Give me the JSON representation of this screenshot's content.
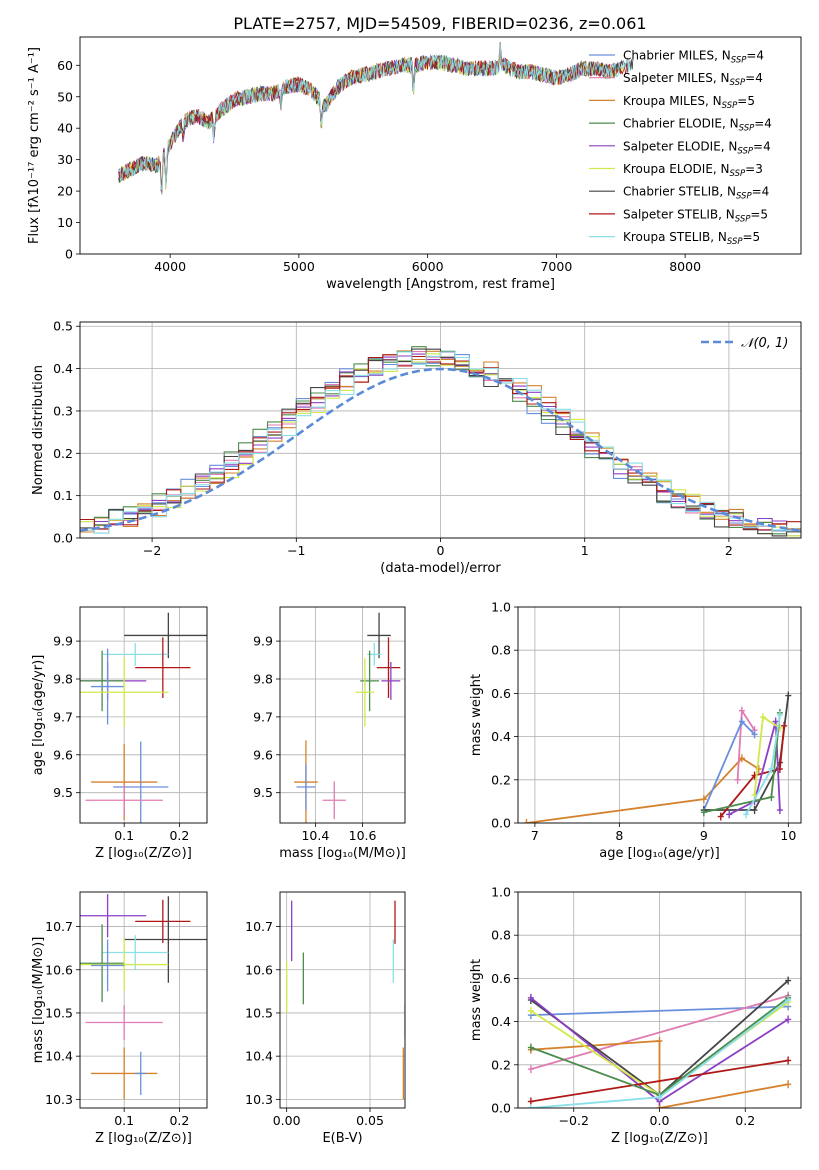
{
  "figure_title": "PLATE=2757, MJD=54509, FIBERID=0236, z=0.061",
  "chart_data": [
    {
      "id": "spectrum",
      "type": "line",
      "xlabel": "wavelength [Angstrom, rest frame]",
      "ylabel": "Flux [fλ10⁻¹⁷ erg cm⁻² s⁻¹ A⁻¹]",
      "xlim": [
        3300,
        8900
      ],
      "ylim": [
        0,
        69
      ],
      "xticks": [
        4000,
        5000,
        6000,
        7000,
        8000
      ],
      "yticks": [
        0,
        10,
        20,
        30,
        40,
        50,
        60
      ],
      "grid": false,
      "legend_position": "top-right",
      "series": [
        {
          "name": "Chabrier MILES, N_SSP=4",
          "color": "#6a8fdc"
        },
        {
          "name": "Salpeter MILES, N_SSP=4",
          "color": "#e07bb3"
        },
        {
          "name": "Kroupa MILES, N_SSP=5",
          "color": "#d4822d"
        },
        {
          "name": "Chabrier ELODIE, N_SSP=4",
          "color": "#4c8c4c"
        },
        {
          "name": "Salpeter ELODIE, N_SSP=4",
          "color": "#8c3fc4"
        },
        {
          "name": "Kroupa ELODIE, N_SSP=3",
          "color": "#d2e84c"
        },
        {
          "name": "Chabrier STELIB, N_SSP=4",
          "color": "#444444"
        },
        {
          "name": "Salpeter STELIB, N_SSP=5",
          "color": "#b01818"
        },
        {
          "name": "Kroupa STELIB, N_SSP=5",
          "color": "#8adfe8"
        }
      ],
      "continuum": {
        "x": [
          3600,
          3700,
          3800,
          3900,
          4000,
          4100,
          4200,
          4300,
          4400,
          4500,
          4600,
          4700,
          4800,
          4900,
          5000,
          5100,
          5200,
          5300,
          5400,
          5500,
          5600,
          5700,
          5800,
          5900,
          6000,
          6100,
          6200,
          6300,
          6400,
          6500,
          6600,
          6700,
          6800,
          6900,
          7000,
          7100,
          7200,
          7300,
          7400,
          7500,
          7600
        ],
        "y": [
          25,
          27,
          29,
          28,
          35,
          42,
          44,
          42,
          46,
          49,
          50,
          51,
          51,
          53,
          54,
          52,
          47,
          53,
          56,
          57,
          58,
          59,
          60,
          60,
          61,
          61,
          60,
          59,
          59,
          59,
          60,
          58,
          58,
          57,
          56,
          57,
          59,
          59,
          58,
          59,
          61
        ]
      }
    },
    {
      "id": "residuals",
      "type": "bar",
      "xlabel": "(data-model)/error",
      "ylabel": "Normed distribution",
      "xlim": [
        -2.5,
        2.5
      ],
      "ylim": [
        0,
        0.51
      ],
      "xticks": [
        -2,
        -1,
        0,
        1,
        2
      ],
      "yticks": [
        0.0,
        0.1,
        0.2,
        0.3,
        0.4,
        0.5
      ],
      "grid": true,
      "legend_position": "top-right",
      "reference_curve": {
        "name": "𝒩(0, 1)",
        "color": "#5a8ad8"
      },
      "bin_width": 0.1
    },
    {
      "id": "z-age",
      "type": "scatter",
      "xlabel": "Z [log₁₀(Z/Z⊙)]",
      "ylabel": "age  [log₁₀(age/yr)]",
      "xlim": [
        0.02,
        0.25
      ],
      "ylim": [
        9.42,
        9.99
      ],
      "xticks": [
        0.1,
        0.2
      ],
      "yticks": [
        9.5,
        9.6,
        9.7,
        9.8,
        9.9
      ],
      "grid": true,
      "points": [
        {
          "color": "#444444",
          "x": 0.18,
          "xerr": 0.08,
          "y": 9.915,
          "yerr": 0.06
        },
        {
          "color": "#8adfe8",
          "x": 0.12,
          "xerr": 0.06,
          "y": 9.865,
          "yerr": 0.03
        },
        {
          "color": "#b01818",
          "x": 0.17,
          "xerr": 0.05,
          "y": 9.83,
          "yerr": 0.08
        },
        {
          "color": "#8c3fc4",
          "x": 0.07,
          "xerr": 0.07,
          "y": 9.795,
          "yerr": 0.05
        },
        {
          "color": "#4c8c4c",
          "x": 0.06,
          "xerr": 0.04,
          "y": 9.795,
          "yerr": 0.08
        },
        {
          "color": "#6a8fdc",
          "x": 0.07,
          "xerr": 0.03,
          "y": 9.78,
          "yerr": 0.1
        },
        {
          "color": "#d2e84c",
          "x": 0.1,
          "xerr": 0.08,
          "y": 9.765,
          "yerr": 0.09
        },
        {
          "color": "#6a8fdc",
          "x": 0.13,
          "xerr": 0.05,
          "y": 9.515,
          "yerr": 0.12
        },
        {
          "color": "#d4822d",
          "x": 0.1,
          "xerr": 0.06,
          "y": 9.528,
          "yerr": 0.1
        },
        {
          "color": "#e07bb3",
          "x": 0.1,
          "xerr": 0.07,
          "y": 9.48,
          "yerr": 0.04
        }
      ]
    },
    {
      "id": "mass-age",
      "type": "scatter",
      "xlabel": "mass [log₁₀(M/M⊙)]",
      "ylabel": "",
      "xlim": [
        10.25,
        10.78
      ],
      "ylim": [
        9.42,
        9.99
      ],
      "xticks": [
        10.4,
        10.6
      ],
      "yticks": [
        9.5,
        9.6,
        9.7,
        9.8,
        9.9
      ],
      "grid": true,
      "points": [
        {
          "color": "#444444",
          "x": 10.67,
          "xerr": 0.05,
          "y": 9.915,
          "yerr": 0.06
        },
        {
          "color": "#8adfe8",
          "x": 10.65,
          "xerr": 0.03,
          "y": 9.865,
          "yerr": 0.03
        },
        {
          "color": "#b01818",
          "x": 10.71,
          "xerr": 0.05,
          "y": 9.83,
          "yerr": 0.08
        },
        {
          "color": "#8c3fc4",
          "x": 10.72,
          "xerr": 0.04,
          "y": 9.795,
          "yerr": 0.05
        },
        {
          "color": "#4c8c4c",
          "x": 10.63,
          "xerr": 0.04,
          "y": 9.795,
          "yerr": 0.08
        },
        {
          "color": "#d2e84c",
          "x": 10.61,
          "xerr": 0.04,
          "y": 9.765,
          "yerr": 0.09
        },
        {
          "color": "#d4822d",
          "x": 10.36,
          "xerr": 0.05,
          "y": 9.528,
          "yerr": 0.11
        },
        {
          "color": "#6a8fdc",
          "x": 10.36,
          "xerr": 0.04,
          "y": 9.515,
          "yerr": 0.06
        },
        {
          "color": "#e07bb3",
          "x": 10.48,
          "xerr": 0.05,
          "y": 9.48,
          "yerr": 0.05
        }
      ]
    },
    {
      "id": "age-weight",
      "type": "line",
      "xlabel": "age  [log₁₀(age/yr)]",
      "ylabel": "mass weight",
      "xlim": [
        6.8,
        10.15
      ],
      "ylim": [
        0,
        1
      ],
      "xticks": [
        7,
        8,
        9,
        10
      ],
      "yticks": [
        0.0,
        0.2,
        0.4,
        0.6,
        0.8,
        1.0
      ],
      "grid": true,
      "series": [
        {
          "color": "#d4822d",
          "x": [
            6.9,
            9.0,
            9.45,
            9.65
          ],
          "y": [
            0.0,
            0.11,
            0.3,
            0.25
          ]
        },
        {
          "color": "#e07bb3",
          "x": [
            9.4,
            9.45,
            9.6
          ],
          "y": [
            0.2,
            0.52,
            0.43
          ]
        },
        {
          "color": "#6a8fdc",
          "x": [
            9.0,
            9.45,
            9.6
          ],
          "y": [
            0.06,
            0.47,
            0.41
          ]
        },
        {
          "color": "#444444",
          "x": [
            9.0,
            9.6,
            9.9,
            10.0
          ],
          "y": [
            0.06,
            0.06,
            0.28,
            0.59
          ]
        },
        {
          "color": "#b01818",
          "x": [
            9.2,
            9.6,
            9.9,
            9.95
          ],
          "y": [
            0.03,
            0.22,
            0.25,
            0.45
          ]
        },
        {
          "color": "#8c3fc4",
          "x": [
            9.3,
            9.6,
            9.85,
            9.9
          ],
          "y": [
            0.04,
            0.1,
            0.47,
            0.06
          ]
        },
        {
          "color": "#d2e84c",
          "x": [
            9.6,
            9.7,
            9.9
          ],
          "y": [
            0.13,
            0.49,
            0.44
          ]
        },
        {
          "color": "#4c8c4c",
          "x": [
            9.0,
            9.8,
            9.9
          ],
          "y": [
            0.05,
            0.12,
            0.51
          ]
        },
        {
          "color": "#8adfe8",
          "x": [
            9.5,
            9.8,
            9.9
          ],
          "y": [
            0.04,
            0.25,
            0.5
          ]
        }
      ]
    },
    {
      "id": "z-mass",
      "type": "scatter",
      "xlabel": "Z [log₁₀(Z/Z⊙)]",
      "ylabel": "mass [log₁₀(M/M⊙)]",
      "xlim": [
        0.02,
        0.25
      ],
      "ylim": [
        10.28,
        10.78
      ],
      "xticks": [
        0.1,
        0.2
      ],
      "yticks": [
        10.3,
        10.4,
        10.5,
        10.6,
        10.7
      ],
      "grid": true,
      "points": [
        {
          "color": "#8c3fc4",
          "x": 0.07,
          "xerr": 0.07,
          "y": 10.725,
          "yerr": 0.05
        },
        {
          "color": "#b01818",
          "x": 0.17,
          "xerr": 0.05,
          "y": 10.712,
          "yerr": 0.05
        },
        {
          "color": "#444444",
          "x": 0.18,
          "xerr": 0.08,
          "y": 10.67,
          "yerr": 0.1
        },
        {
          "color": "#8adfe8",
          "x": 0.12,
          "xerr": 0.06,
          "y": 10.64,
          "yerr": 0.04
        },
        {
          "color": "#4c8c4c",
          "x": 0.06,
          "xerr": 0.04,
          "y": 10.615,
          "yerr": 0.09
        },
        {
          "color": "#d2e84c",
          "x": 0.1,
          "xerr": 0.08,
          "y": 10.612,
          "yerr": 0.06
        },
        {
          "color": "#6a8fdc",
          "x": 0.07,
          "xerr": 0.03,
          "y": 10.61,
          "yerr": 0.06
        },
        {
          "color": "#e07bb3",
          "x": 0.1,
          "xerr": 0.07,
          "y": 10.478,
          "yerr": 0.04
        },
        {
          "color": "#d4822d",
          "x": 0.1,
          "xerr": 0.06,
          "y": 10.36,
          "yerr": 0.06
        },
        {
          "color": "#6a8fdc",
          "x": 0.13,
          "xerr": 0.01,
          "y": 10.36,
          "yerr": 0.05
        }
      ]
    },
    {
      "id": "ebv-mass",
      "type": "scatter",
      "xlabel": "E(B-V)",
      "ylabel": "",
      "xlim": [
        -0.004,
        0.071
      ],
      "ylim": [
        10.28,
        10.78
      ],
      "xticks": [
        0.0,
        0.05
      ],
      "yticks": [
        10.3,
        10.4,
        10.5,
        10.6,
        10.7
      ],
      "grid": true,
      "points": [
        {
          "color": "#d2e84c",
          "x": 0.0,
          "y": 10.56,
          "yerr": 0.06
        },
        {
          "color": "#8c3fc4",
          "x": 0.003,
          "y": 10.69,
          "yerr": 0.07
        },
        {
          "color": "#4c8c4c",
          "x": 0.01,
          "y": 10.58,
          "yerr": 0.06
        },
        {
          "color": "#b01818",
          "x": 0.065,
          "y": 10.71,
          "yerr": 0.05
        },
        {
          "color": "#8adfe8",
          "x": 0.064,
          "y": 10.62,
          "yerr": 0.05
        },
        {
          "color": "#e07bb3",
          "x": 0.071,
          "y": 10.48,
          "yerr": 0.04
        },
        {
          "color": "#d4822d",
          "x": 0.07,
          "y": 10.36,
          "yerr": 0.06
        }
      ]
    },
    {
      "id": "z-weight",
      "type": "line",
      "xlabel": "Z [log₁₀(Z/Z⊙)]",
      "ylabel": "mass weight",
      "xlim": [
        -0.33,
        0.33
      ],
      "ylim": [
        0,
        1
      ],
      "xticks": [
        -0.2,
        0.0,
        0.2
      ],
      "yticks": [
        0.0,
        0.2,
        0.4,
        0.6,
        0.8,
        1.0
      ],
      "grid": true,
      "series": [
        {
          "color": "#6a8fdc",
          "x": [
            -0.3,
            0.3
          ],
          "y": [
            0.43,
            0.47
          ]
        },
        {
          "color": "#e07bb3",
          "x": [
            -0.3,
            0.3
          ],
          "y": [
            0.18,
            0.52
          ]
        },
        {
          "color": "#d4822d",
          "x": [
            -0.3,
            0.0,
            0.0,
            0.3
          ],
          "y": [
            0.27,
            0.31,
            0.0,
            0.11
          ]
        },
        {
          "color": "#444444",
          "x": [
            -0.3,
            0.0,
            0.3
          ],
          "y": [
            0.5,
            0.06,
            0.59
          ]
        },
        {
          "color": "#8c3fc4",
          "x": [
            -0.3,
            0.0,
            0.3
          ],
          "y": [
            0.51,
            0.03,
            0.41
          ]
        },
        {
          "color": "#d2e84c",
          "x": [
            -0.3,
            0.0,
            0.3
          ],
          "y": [
            0.45,
            0.06,
            0.49
          ]
        },
        {
          "color": "#b01818",
          "x": [
            -0.3,
            0.3
          ],
          "y": [
            0.03,
            0.22
          ]
        },
        {
          "color": "#4c8c4c",
          "x": [
            -0.3,
            0.0,
            0.3
          ],
          "y": [
            0.28,
            0.06,
            0.51
          ]
        },
        {
          "color": "#8adfe8",
          "x": [
            -0.3,
            0.0,
            0.3
          ],
          "y": [
            0.0,
            0.05,
            0.5
          ]
        }
      ]
    }
  ]
}
